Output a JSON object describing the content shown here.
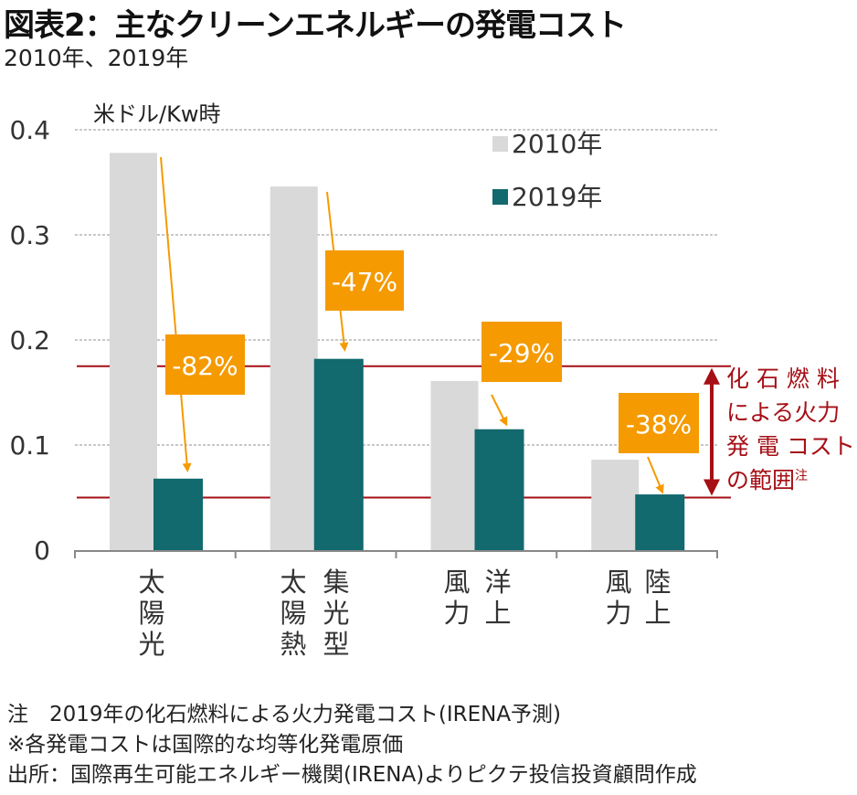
{
  "header": {
    "title": "図表2：主なクリーンエネルギーの発電コスト",
    "subtitle": "2010年、2019年"
  },
  "chart_data": {
    "type": "bar",
    "title": "図表2：主なクリーンエネルギーの発電コスト",
    "subtitle": "2010年、2019年",
    "ylabel": "米ドル/Kw時",
    "xlabel": "",
    "ylim": [
      0,
      0.4
    ],
    "yticks": [
      0,
      0.1,
      0.2,
      0.3,
      0.4
    ],
    "ytick_labels": [
      "0",
      "0.1",
      "0.2",
      "0.3",
      "0.4"
    ],
    "grid": true,
    "categories": [
      "太陽光",
      "太陽熱集光型",
      "洋上風力",
      "陸上風力"
    ],
    "category_label_columns": [
      [
        [
          "太",
          "陽",
          "光"
        ]
      ],
      [
        [
          "太",
          "陽",
          "熱"
        ],
        [
          "集",
          "光",
          "型"
        ]
      ],
      [
        [
          "風",
          "力"
        ],
        [
          "洋",
          "上"
        ]
      ],
      [
        [
          "風",
          "力"
        ],
        [
          "陸",
          "上"
        ]
      ]
    ],
    "series": [
      {
        "name": "2010年",
        "color": "#d9d9d9",
        "values": [
          0.378,
          0.346,
          0.161,
          0.086
        ]
      },
      {
        "name": "2019年",
        "color": "#12696e",
        "values": [
          0.068,
          0.182,
          0.115,
          0.053
        ]
      }
    ],
    "legend": {
      "position": "top-right",
      "entries": [
        "2010年",
        "2019年"
      ]
    },
    "change_labels": [
      "-82%",
      "-47%",
      "-29%",
      "-38%"
    ],
    "change_label_color": "#f59a00",
    "reference_lines": {
      "upper": 0.175,
      "lower": 0.05,
      "color": "#a50f15",
      "range_label_lines": [
        "化 石 燃 料",
        "による火力",
        "発 電 コスト",
        "の範囲"
      ],
      "range_label_note": "注"
    }
  },
  "notes": [
    "注　2019年の化石燃料による火力発電コスト(IRENA予測)",
    "※各発電コストは国際的な均等化発電原価",
    "出所：国際再生可能エネルギー機関(IRENA)よりピクテ投信投資顧問作成"
  ]
}
